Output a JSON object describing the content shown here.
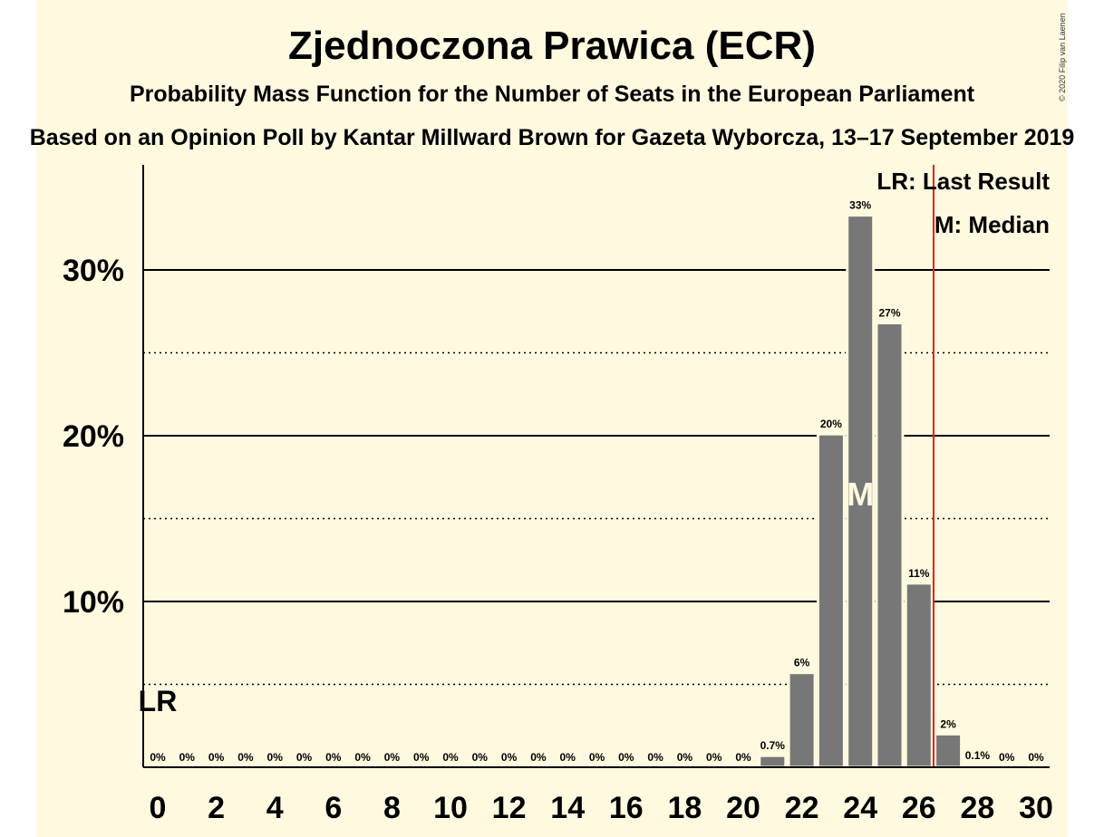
{
  "header": {
    "title": "Zjednoczona Prawica (ECR)",
    "subtitle": "Probability Mass Function for the Number of Seats in the European Parliament",
    "source": "Based on an Opinion Poll by Kantar Millward Brown for Gazeta Wyborcza, 13–17 September 2019",
    "copyright": "© 2020 Filip van Laenen"
  },
  "legend": {
    "last_result": "LR: Last Result",
    "median": "M: Median"
  },
  "colors": {
    "background": "#FFF9E0",
    "bar": "#777777",
    "last_result_line": "#E0201B"
  },
  "chart_data": {
    "type": "bar",
    "x": [
      0,
      1,
      2,
      3,
      4,
      5,
      6,
      7,
      8,
      9,
      10,
      11,
      12,
      13,
      14,
      15,
      16,
      17,
      18,
      19,
      20,
      21,
      22,
      23,
      24,
      25,
      26,
      27,
      28,
      29,
      30
    ],
    "values": [
      0,
      0,
      0,
      0,
      0,
      0,
      0,
      0,
      0,
      0,
      0,
      0,
      0,
      0,
      0,
      0,
      0,
      0,
      0,
      0,
      0,
      0.7,
      5.7,
      20.1,
      33.3,
      26.8,
      11.1,
      2.0,
      0.1,
      0,
      0
    ],
    "data_labels": [
      "0%",
      "0%",
      "0%",
      "0%",
      "0%",
      "0%",
      "0%",
      "0%",
      "0%",
      "0%",
      "0%",
      "0%",
      "0%",
      "0%",
      "0%",
      "0%",
      "0%",
      "0%",
      "0%",
      "0%",
      "0%",
      "0.7%",
      "6%",
      "20%",
      "33%",
      "27%",
      "11%",
      "2%",
      "0.1%",
      "0%",
      "0%"
    ],
    "x_tick_labels": [
      "0",
      "2",
      "4",
      "6",
      "8",
      "10",
      "12",
      "14",
      "16",
      "18",
      "20",
      "22",
      "24",
      "26",
      "28",
      "30"
    ],
    "x_tick_values": [
      0,
      2,
      4,
      6,
      8,
      10,
      12,
      14,
      16,
      18,
      20,
      22,
      24,
      26,
      28,
      30
    ],
    "y_tick_labels": [
      "10%",
      "20%",
      "30%"
    ],
    "y_tick_values": [
      10,
      20,
      30
    ],
    "y_minor_gridlines": [
      5,
      15,
      25
    ],
    "ylim": [
      0,
      36.3
    ],
    "median": 24,
    "median_marker": "M",
    "last_result": 0,
    "last_result_marker": "LR",
    "threshold_line_x": 26.5,
    "grid": true,
    "legend_position": "top-right"
  }
}
